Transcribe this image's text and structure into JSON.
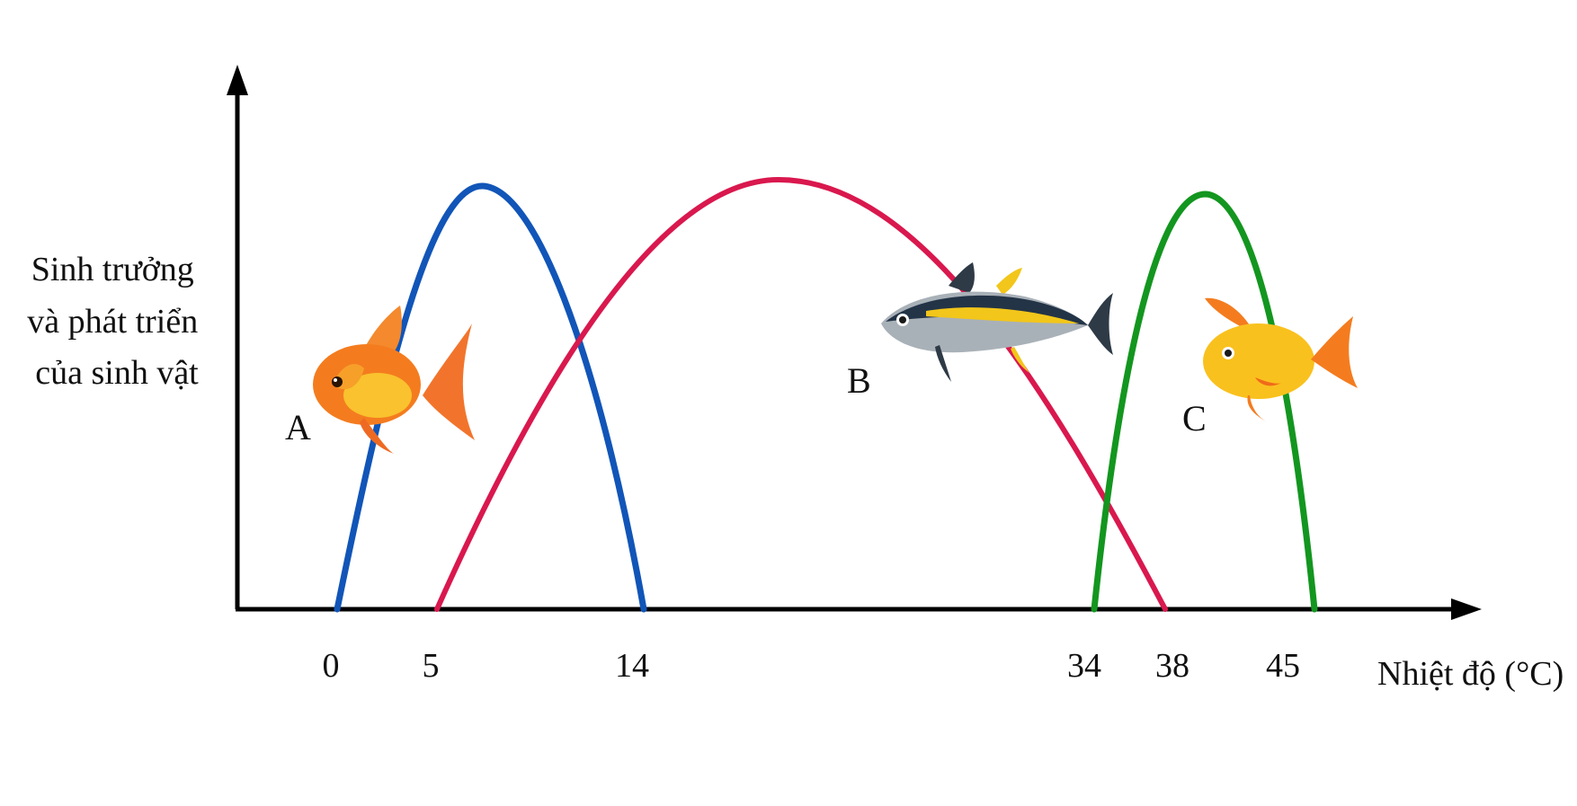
{
  "chart_data": {
    "type": "line",
    "ylabel_lines": [
      "Sinh trưởng",
      "và phát triển",
      "của sinh vật"
    ],
    "xlabel": "Nhiệt độ (°C)",
    "x_ticks": [
      "0",
      "5",
      "14",
      "34",
      "38",
      "45"
    ],
    "series": [
      {
        "name": "A",
        "color": "#1155B8",
        "x_range": [
          0,
          14
        ],
        "peak_x": 5,
        "icon": "goldfish-icon"
      },
      {
        "name": "B",
        "color": "#D9184E",
        "x_range": [
          5,
          38
        ],
        "peak_x": 20,
        "icon": "tuna-icon"
      },
      {
        "name": "C",
        "color": "#13961F",
        "x_range": [
          34,
          45
        ],
        "peak_x": 40,
        "icon": "yellow-fish-icon"
      }
    ]
  }
}
